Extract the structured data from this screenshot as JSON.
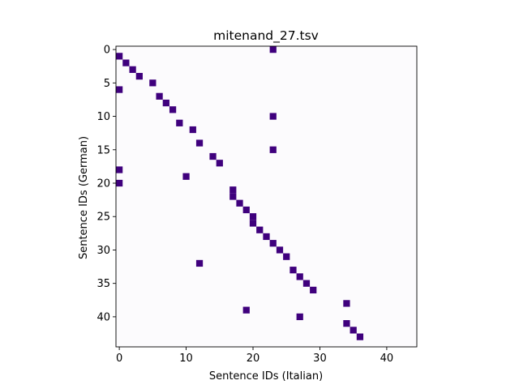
{
  "chart_data": {
    "type": "heatmap",
    "title": "mitenand_27.tsv",
    "xlabel": "Sentence IDs (Italian)",
    "ylabel": "Sentence IDs (German)",
    "xlim": [
      -0.5,
      44.5
    ],
    "ylim": [
      -0.5,
      44.5
    ],
    "y_inverted": true,
    "xticks": [
      0,
      10,
      20,
      30,
      40
    ],
    "yticks": [
      0,
      5,
      10,
      15,
      20,
      25,
      30,
      35,
      40
    ],
    "background_color": "#fcfbfd",
    "cell_color": "#3f007d",
    "frame_color": "#000000",
    "grid": false,
    "cells": [
      {
        "x": 23,
        "y": 0
      },
      {
        "x": 0,
        "y": 1
      },
      {
        "x": 1,
        "y": 2
      },
      {
        "x": 2,
        "y": 3
      },
      {
        "x": 3,
        "y": 4
      },
      {
        "x": 5,
        "y": 5
      },
      {
        "x": 0,
        "y": 6
      },
      {
        "x": 6,
        "y": 7
      },
      {
        "x": 7,
        "y": 8
      },
      {
        "x": 8,
        "y": 9
      },
      {
        "x": 23,
        "y": 10
      },
      {
        "x": 9,
        "y": 11
      },
      {
        "x": 11,
        "y": 12
      },
      {
        "x": 12,
        "y": 14
      },
      {
        "x": 23,
        "y": 15
      },
      {
        "x": 14,
        "y": 16
      },
      {
        "x": 15,
        "y": 17
      },
      {
        "x": 0,
        "y": 18
      },
      {
        "x": 10,
        "y": 19
      },
      {
        "x": 0,
        "y": 20
      },
      {
        "x": 17,
        "y": 21
      },
      {
        "x": 17,
        "y": 22
      },
      {
        "x": 18,
        "y": 23
      },
      {
        "x": 19,
        "y": 24
      },
      {
        "x": 20,
        "y": 25
      },
      {
        "x": 20,
        "y": 26
      },
      {
        "x": 21,
        "y": 27
      },
      {
        "x": 22,
        "y": 28
      },
      {
        "x": 23,
        "y": 29
      },
      {
        "x": 24,
        "y": 30
      },
      {
        "x": 25,
        "y": 31
      },
      {
        "x": 12,
        "y": 32
      },
      {
        "x": 26,
        "y": 33
      },
      {
        "x": 27,
        "y": 34
      },
      {
        "x": 28,
        "y": 35
      },
      {
        "x": 29,
        "y": 36
      },
      {
        "x": 34,
        "y": 38
      },
      {
        "x": 19,
        "y": 39
      },
      {
        "x": 27,
        "y": 40
      },
      {
        "x": 34,
        "y": 41
      },
      {
        "x": 35,
        "y": 42
      },
      {
        "x": 36,
        "y": 43
      }
    ]
  }
}
